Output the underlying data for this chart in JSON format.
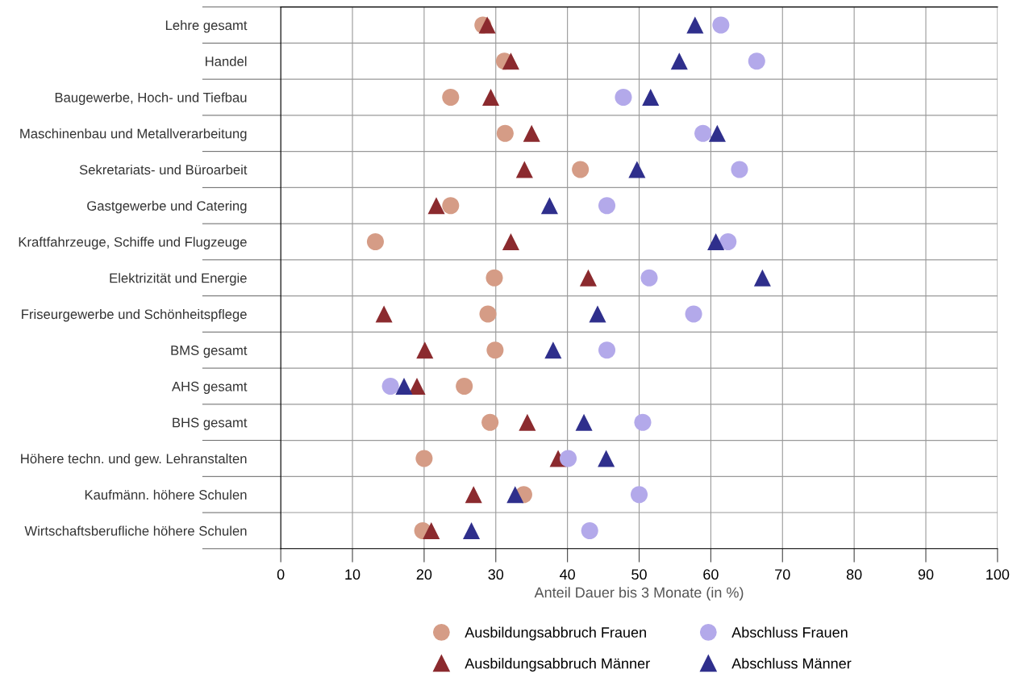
{
  "chart_data": {
    "type": "scatter",
    "orientation": "horizontal",
    "xlabel": "Anteil Dauer bis 3 Monate (in %)",
    "categories": [
      "Lehre gesamt",
      "Handel",
      "Baugewerbe, Hoch- und Tiefbau",
      "Maschinenbau und Metallverarbeitung",
      "Sekretariats- und Büroarbeit",
      "Gastgewerbe und Catering",
      "Kraftfahrzeuge, Schiffe und Flugzeuge",
      "Elektrizität und Energie",
      "Friseurgewerbe und Schönheitspflege",
      "BMS gesamt",
      "AHS gesamt",
      "BHS gesamt",
      "Höhere techn. und gew. Lehranstalten",
      "Kaufmänn. höhere Schulen",
      "Wirtschaftsberufliche höhere Schulen"
    ],
    "series": [
      {
        "name": "Ausbildungsabbruch Frauen",
        "color": "#d59c86",
        "marker": "circle",
        "values": [
          28.2,
          31.2,
          23.7,
          31.3,
          41.8,
          23.7,
          13.2,
          29.8,
          28.9,
          29.9,
          25.6,
          29.2,
          20.0,
          33.9,
          19.8
        ]
      },
      {
        "name": "Ausbildungsabbruch Männer",
        "color": "#8b2a2e",
        "marker": "triangle",
        "values": [
          28.8,
          32.1,
          29.3,
          35.0,
          34.0,
          21.7,
          32.1,
          42.9,
          14.4,
          20.1,
          19.0,
          34.4,
          38.7,
          26.9,
          21.0
        ]
      },
      {
        "name": "Abschluss Frauen",
        "color": "#b3a9ea",
        "marker": "circle",
        "values": [
          61.4,
          66.4,
          47.8,
          58.9,
          64.0,
          45.5,
          62.4,
          51.4,
          57.6,
          45.5,
          15.3,
          50.5,
          40.1,
          50.0,
          43.1
        ]
      },
      {
        "name": "Abschluss Männer",
        "color": "#2f2f8c",
        "marker": "triangle",
        "values": [
          57.8,
          55.6,
          51.6,
          60.9,
          49.7,
          37.5,
          60.7,
          67.2,
          44.2,
          38.0,
          17.2,
          42.3,
          45.4,
          32.7,
          26.6
        ]
      }
    ],
    "xlim": [
      0,
      100
    ],
    "xticks": [
      0,
      10,
      20,
      30,
      40,
      50,
      60,
      70,
      80,
      90,
      100
    ],
    "grid": true,
    "legend": "bottom"
  }
}
